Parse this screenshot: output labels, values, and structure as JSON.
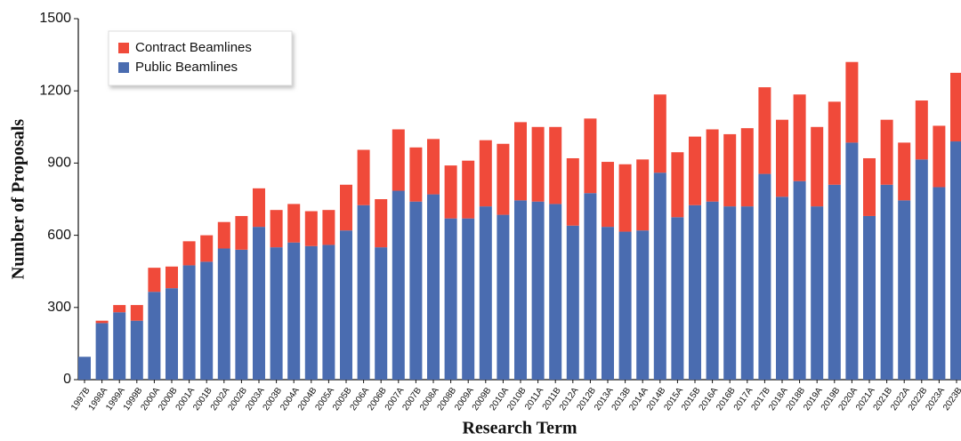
{
  "chart_data": {
    "type": "stacked_bar",
    "x_label": "Research Term",
    "y_label": "Number of Proposals",
    "categories": [
      "1997B",
      "1998A",
      "1999A",
      "1999B",
      "2000A",
      "2000B",
      "2001A",
      "2001B",
      "2002A",
      "2002B",
      "2003A",
      "2003B",
      "2004A",
      "2004B",
      "2005A",
      "2005B",
      "2006A",
      "2006B",
      "2007A",
      "2007B",
      "2008A",
      "2008B",
      "2009A",
      "2009B",
      "2010A",
      "2010B",
      "2011A",
      "2011B",
      "2012A",
      "2012B",
      "2013A",
      "2013B",
      "2014A",
      "2014B",
      "2015A",
      "2015B",
      "2016A",
      "2016B",
      "2017A",
      "2017B",
      "2018A",
      "2018B",
      "2019A",
      "2019B",
      "2020A",
      "2021A",
      "2021B",
      "2022A",
      "2022B",
      "2023A",
      "2023B"
    ],
    "series": [
      {
        "name": "Contract Beamlines",
        "color": "#f04a3a",
        "values": [
          0,
          10,
          30,
          65,
          100,
          90,
          100,
          110,
          110,
          140,
          160,
          155,
          160,
          145,
          145,
          190,
          230,
          200,
          255,
          225,
          230,
          220,
          240,
          275,
          295,
          325,
          310,
          320,
          280,
          310,
          270,
          280,
          295,
          325,
          270,
          285,
          300,
          300,
          325,
          360,
          320,
          360,
          330,
          345,
          335,
          240,
          270,
          240,
          245,
          255,
          285
        ]
      },
      {
        "name": "Public Beamlines",
        "color": "#4a6cb0",
        "values": [
          95,
          235,
          280,
          245,
          365,
          380,
          475,
          490,
          545,
          540,
          635,
          550,
          570,
          555,
          560,
          620,
          725,
          550,
          785,
          740,
          770,
          670,
          670,
          720,
          685,
          745,
          740,
          730,
          640,
          775,
          635,
          615,
          620,
          860,
          675,
          725,
          740,
          720,
          720,
          855,
          760,
          825,
          720,
          810,
          985,
          680,
          810,
          745,
          915,
          800,
          990
        ]
      }
    ],
    "ylim": [
      0,
      1500
    ],
    "yticks": [
      0,
      300,
      600,
      900,
      1200,
      1500
    ],
    "legend": "upper-left"
  }
}
